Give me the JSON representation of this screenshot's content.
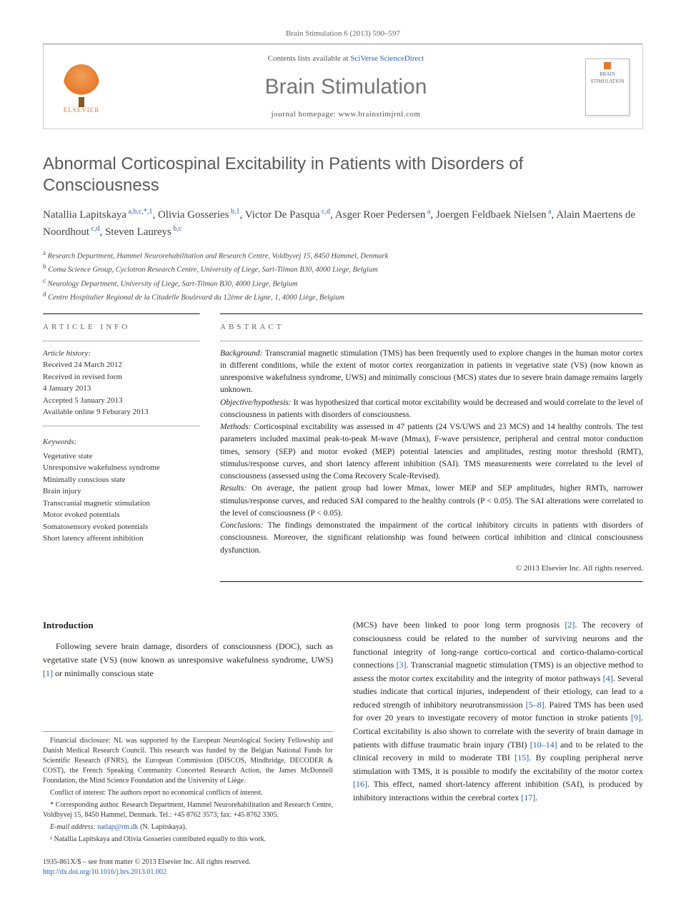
{
  "citation": "Brain Stimulation 6 (2013) 590–597",
  "header": {
    "publisher": "ELSEVIER",
    "contents_prefix": "Contents lists available at ",
    "contents_link": "SciVerse ScienceDirect",
    "journal": "Brain Stimulation",
    "homepage_prefix": "journal homepage: ",
    "homepage_url": "www.brainstimjrnl.com",
    "cover_label_top": "BRAIN",
    "cover_label_bottom": "STIMULATION"
  },
  "article": {
    "title": "Abnormal Corticospinal Excitability in Patients with Disorders of Consciousness",
    "authors_html": "Natallia Lapitskaya<sup> a,b,c,*,1</sup>, Olivia Gosseries<sup> b,1</sup>, Victor De Pasqua<sup> c,d</sup>, Asger Roer Pedersen<sup> a</sup>, Joergen Feldbaek Nielsen<sup> a</sup>, Alain Maertens de Noordhout<sup> c,d</sup>, Steven Laureys<sup> b,c</sup>",
    "affiliations": [
      "Research Department, Hammel Neurorehabilitation and Research Centre, Voldbyvej 15, 8450 Hammel, Denmark",
      "Coma Science Group, Cyclotron Research Centre, University of Liege, Sart-Tilman B30, 4000 Liege, Belgium",
      "Neurology Department, University of Liege, Sart-Tilman B30, 4000 Liege, Belgium",
      "Centre Hospitalier Regional de la Citadelle Boulevard du 12ème de Ligne, 1, 4000 Liège, Belgium"
    ],
    "aff_markers": [
      "a",
      "b",
      "c",
      "d"
    ]
  },
  "info": {
    "head_left": "ARTICLE INFO",
    "head_right": "ABSTRACT",
    "history_label": "Article history:",
    "history": [
      "Received 24 March 2012",
      "Received in revised form",
      "4 January 2013",
      "Accepted 5 January 2013",
      "Available online 9 Feburary 2013"
    ],
    "keywords_label": "Keywords:",
    "keywords": [
      "Vegetative state",
      "Unresponsive wakefulness syndrome",
      "Minimally conscious state",
      "Brain injury",
      "Transcranial magnetic stimulation",
      "Motor evoked potentials",
      "Somatosensory evoked potentials",
      "Short latency afferent inhibition"
    ]
  },
  "abstract": {
    "background_label": "Background:",
    "background": " Transcranial magnetic stimulation (TMS) has been frequently used to explore changes in the human motor cortex in different conditions, while the extent of motor cortex reorganization in patients in vegetative state (VS) (now known as unresponsive wakefulness syndrome, UWS) and minimally conscious (MCS) states due to severe brain damage remains largely unknown.",
    "objective_label": "Objective/hypothesis:",
    "objective": " It was hypothesized that cortical motor excitability would be decreased and would correlate to the level of consciousness in patients with disorders of consciousness.",
    "methods_label": "Methods:",
    "methods": " Corticospinal excitability was assessed in 47 patients (24 VS/UWS and 23 MCS) and 14 healthy controls. The test parameters included maximal peak-to-peak M-wave (Mmax), F-wave persistence, peripheral and central motor conduction times, sensory (SEP) and motor evoked (MEP) potential latencies and amplitudes, resting motor threshold (RMT), stimulus/response curves, and short latency afferent inhibition (SAI). TMS measurements were correlated to the level of consciousness (assessed using the Coma Recovery Scale-Revised).",
    "results_label": "Results:",
    "results": " On average, the patient group had lower Mmax, lower MEP and SEP amplitudes, higher RMTs, narrower stimulus/response curves, and reduced SAI compared to the healthy controls (P < 0.05). The SAI alterations were correlated to the level of consciousness (P < 0.05).",
    "conclusions_label": "Conclusions:",
    "conclusions": " The findings demonstrated the impairment of the cortical inhibitory circuits in patients with disorders of consciousness. Moreover, the significant relationship was found between cortical inhibition and clinical consciousness dysfunction.",
    "copyright": "© 2013 Elsevier Inc. All rights reserved."
  },
  "body": {
    "intro_head": "Introduction",
    "intro_p1_pre": "Following severe brain damage, disorders of consciousness (DOC), such as vegetative state (VS) (now known as unresponsive wakefulness syndrome, UWS) ",
    "intro_p1_ref1": "[1]",
    "intro_p1_mid": " or minimally conscious state ",
    "col2_pre": "(MCS) have been linked to poor long term prognosis ",
    "col2_ref2": "[2]",
    "col2_a": ". The recovery of consciousness could be related to the number of surviving neurons and the functional integrity of long-range cortico-cortical and cortico-thalamo-cortical connections ",
    "col2_ref3": "[3]",
    "col2_b": ". Transcranial magnetic stimulation (TMS) is an objective method to assess the motor cortex excitability and the integrity of motor pathways ",
    "col2_ref4": "[4]",
    "col2_c": ". Several studies indicate that cortical injuries, independent of their etiology, can lead to a reduced strength of inhibitory neurotransmission ",
    "col2_ref58": "[5–8]",
    "col2_d": ". Paired TMS has been used for over 20 years to investigate recovery of motor function in stroke patients ",
    "col2_ref9": "[9]",
    "col2_e": ". Cortical excitability is also shown to correlate with the severity of brain damage in patients with diffuse traumatic brain injury (TBI) ",
    "col2_ref1014": "[10–14]",
    "col2_f": " and to be related to the clinical recovery in mild to moderate TBI ",
    "col2_ref15": "[15]",
    "col2_g": ". By coupling peripheral nerve stimulation with TMS, it is possible to modify the excitability of the motor cortex ",
    "col2_ref16": "[16]",
    "col2_h": ". This effect, named short-latency afferent inhibition (SAI), is produced by inhibitory interactions within the cerebral cortex ",
    "col2_ref17": "[17]",
    "col2_end": "."
  },
  "footnotes": {
    "fn1": "Financial disclosure: NL was supported by the European Neurological Society Fellowship and Danish Medical Research Council. This research was funded by the Belgian National Funds for Scientific Research (FNRS), the European Commission (DISCOS, Mindbridge, DECODER & COST), the French Speaking Community Concerted Research Action, the James McDonnell Foundation, the Mind Science Foundation and the University of Liège.",
    "fn2": "Conflict of interest: The authors report no economical conflicts of interest.",
    "fn3_pre": "* Corresponding author. Research Department, Hammel Neurorehabilitation and Research Centre, Voldbyvej 15, 8450 Hammel, Denmark. Tel.: +45 8762 3573; fax: +45 8762 3305.",
    "fn_email_label": "E-mail address: ",
    "fn_email": "natlap@rm.dk",
    "fn_email_suffix": " (N. Lapitskaya).",
    "fn4": "¹ Natallia Lapitskaya and Olivia Gosseries contributed equally to this work."
  },
  "footer": {
    "line1": "1935-861X/$ – see front matter © 2013 Elsevier Inc. All rights reserved.",
    "doi_label": "http://dx.doi.org/",
    "doi": "10.1016/j.brs.2013.01.002"
  },
  "colors": {
    "link": "#2a5db0",
    "orange": "#e6792b",
    "gray_text": "#5a5a5a"
  }
}
